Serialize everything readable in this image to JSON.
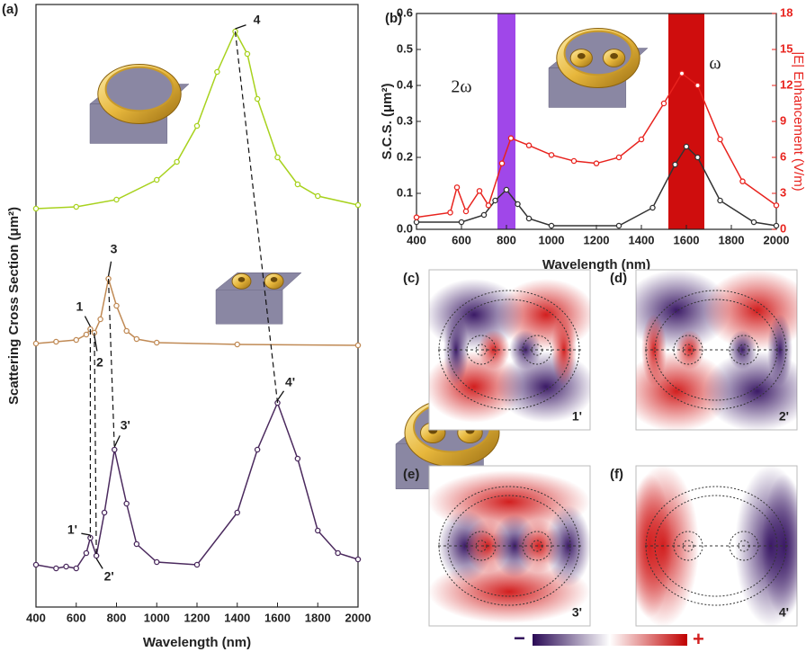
{
  "chart_data": [
    {
      "type": "line",
      "panel_label": "(a)",
      "xlabel": "Wavelength (nm)",
      "ylabel": "Scattering Cross Section (μm²)",
      "xlim": [
        400,
        2000
      ],
      "xticks": [
        400,
        600,
        800,
        1000,
        1200,
        1400,
        1600,
        1800,
        2000
      ],
      "ylim": [
        0.3,
        7.0
      ],
      "series": [
        {
          "color": "#a8d21e",
          "x": [
            400,
            600,
            800,
            1000,
            1100,
            1200,
            1300,
            1390,
            1450,
            1500,
            1600,
            1700,
            1800,
            2000
          ],
          "values": [
            4.73,
            4.75,
            4.83,
            5.05,
            5.25,
            5.65,
            6.25,
            6.7,
            6.45,
            5.95,
            5.3,
            5.0,
            4.87,
            4.77
          ]
        },
        {
          "color": "#c08a55",
          "x": [
            400,
            500,
            600,
            650,
            670,
            690,
            720,
            760,
            800,
            850,
            900,
            1000,
            1400,
            2000
          ],
          "values": [
            3.23,
            3.25,
            3.27,
            3.33,
            3.39,
            3.35,
            3.5,
            3.95,
            3.65,
            3.37,
            3.28,
            3.24,
            3.22,
            3.21
          ]
        },
        {
          "color": "#4b2a5e",
          "x": [
            400,
            500,
            550,
            600,
            650,
            670,
            700,
            740,
            790,
            850,
            900,
            1000,
            1200,
            1400,
            1500,
            1600,
            1700,
            1800,
            1900,
            2000
          ],
          "values": [
            0.77,
            0.73,
            0.75,
            0.73,
            0.9,
            1.07,
            0.87,
            1.35,
            2.05,
            1.45,
            1.0,
            0.8,
            0.77,
            1.35,
            2.05,
            2.57,
            1.95,
            1.15,
            0.9,
            0.83
          ]
        }
      ],
      "annotations": [
        {
          "text": "1",
          "x": 670,
          "y": 3.39
        },
        {
          "text": "2",
          "x": 690,
          "y": 3.35
        },
        {
          "text": "3",
          "x": 760,
          "y": 3.95
        },
        {
          "text": "4",
          "x": 1390,
          "y": 6.7
        },
        {
          "text": "1'",
          "x": 670,
          "y": 1.07
        },
        {
          "text": "2'",
          "x": 700,
          "y": 0.87
        },
        {
          "text": "3'",
          "x": 790,
          "y": 2.05
        },
        {
          "text": "4'",
          "x": 1600,
          "y": 2.57
        }
      ]
    },
    {
      "type": "line",
      "panel_label": "(b)",
      "xlabel": "Wavelength (nm)",
      "ylabel": "S.C.S. (μm²)",
      "y2label": "|E| Enhancement (V/m)",
      "xlim": [
        400,
        2000
      ],
      "xticks": [
        400,
        600,
        800,
        1000,
        1200,
        1400,
        1600,
        1800,
        2000
      ],
      "ylim": [
        0,
        0.6
      ],
      "yticks": [
        {
          "value": 0,
          "label": "0.0"
        },
        0.1,
        0.2,
        0.3,
        0.4,
        0.5,
        0.6
      ],
      "y2lim": [
        0,
        18
      ],
      "y2ticks": [
        0,
        3,
        6,
        9,
        12,
        15,
        18
      ],
      "bands": [
        {
          "range": [
            760,
            840
          ],
          "color": "#9b3de8"
        },
        {
          "range": [
            1520,
            1680
          ],
          "color": "#cc0000"
        }
      ],
      "series": [
        {
          "color": "#333333",
          "x": [
            400,
            600,
            700,
            750,
            800,
            850,
            900,
            1000,
            1300,
            1450,
            1550,
            1600,
            1650,
            1750,
            1900,
            2000
          ],
          "values": [
            0.02,
            0.02,
            0.04,
            0.08,
            0.11,
            0.07,
            0.03,
            0.01,
            0.01,
            0.06,
            0.18,
            0.23,
            0.2,
            0.08,
            0.02,
            0.01
          ]
        },
        {
          "color": "#e8231e",
          "axis": "y2",
          "x": [
            400,
            550,
            580,
            620,
            680,
            720,
            780,
            820,
            900,
            1000,
            1100,
            1200,
            1300,
            1400,
            1500,
            1580,
            1650,
            1750,
            1850,
            2000
          ],
          "values": [
            1.0,
            1.4,
            3.5,
            1.5,
            3.2,
            2.0,
            5.5,
            7.6,
            7.0,
            6.2,
            5.7,
            5.5,
            6.0,
            7.5,
            10.5,
            13.0,
            12.0,
            7.5,
            4.0,
            2.0
          ]
        }
      ],
      "annotations": [
        {
          "text": "2ω"
        },
        {
          "text": "ω"
        }
      ]
    }
  ],
  "field_maps": {
    "panels": [
      {
        "label": "(c)",
        "mode": "1'"
      },
      {
        "label": "(d)",
        "mode": "2'"
      },
      {
        "label": "(e)",
        "mode": "3'"
      },
      {
        "label": "(f)",
        "mode": "4'"
      }
    ],
    "colorbar": {
      "min_label": "−",
      "max_label": "+"
    }
  }
}
